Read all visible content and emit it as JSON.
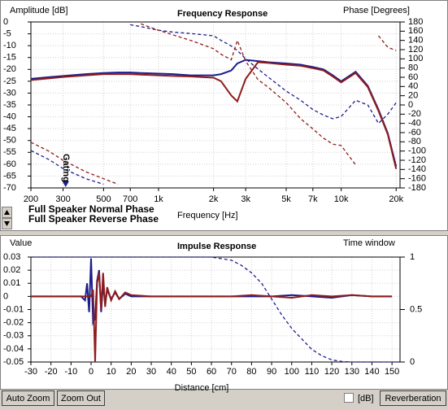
{
  "chart_data": [
    {
      "type": "line",
      "title": "Frequency Response",
      "xlabel": "Frequency [Hz]",
      "ylabel": "Amplitude [dB]",
      "y2label": "Phase [Degrees]",
      "xscale": "log",
      "grid": true,
      "x": [
        200,
        250,
        300,
        400,
        500,
        600,
        700,
        800,
        1000,
        1200,
        1500,
        2000,
        2200,
        2500,
        2700,
        3000,
        3500,
        4000,
        5000,
        6000,
        7000,
        8000,
        9000,
        10000,
        12000,
        14000,
        16000,
        18000,
        20000
      ],
      "xlim": [
        200,
        21000
      ],
      "xticks": [
        200,
        300,
        500,
        700,
        {
          "value": 1000,
          "label": "1k"
        },
        {
          "value": 2000,
          "label": "2k"
        },
        {
          "value": 3000,
          "label": "3k"
        },
        {
          "value": 5000,
          "label": "5k"
        },
        {
          "value": 7000,
          "label": "7k"
        },
        {
          "value": 10000,
          "label": "10k"
        },
        {
          "value": 20000,
          "label": "20k"
        }
      ],
      "ylim": [
        -70,
        0
      ],
      "yticks": [
        0,
        -5,
        -10,
        -15,
        -20,
        -25,
        -30,
        -35,
        -40,
        -45,
        -50,
        -55,
        -60,
        -65,
        -70
      ],
      "y2lim": [
        -180,
        180
      ],
      "y2ticks": [
        180,
        160,
        140,
        120,
        100,
        80,
        60,
        40,
        20,
        0,
        -20,
        -40,
        -60,
        -80,
        -100,
        -120,
        -140,
        -160,
        -180
      ],
      "annotations": [
        {
          "text": "Gating",
          "x": 310
        }
      ],
      "series": [
        {
          "name": "Full Speaker Normal Phase",
          "color": "#1c1c8e",
          "values": [
            -24,
            -23.3,
            -22.8,
            -22,
            -21.5,
            -21.3,
            -21.3,
            -21.5,
            -21.8,
            -22,
            -22.5,
            -22.5,
            -22,
            -20.5,
            -17.5,
            -16,
            -16.5,
            -17,
            -17.5,
            -18,
            -19,
            -20,
            -22.5,
            -25,
            -21,
            -27,
            -37,
            -47,
            -61
          ]
        },
        {
          "name": "Full Speaker Reverse Phase",
          "color": "#8e1c1c",
          "values": [
            -24.5,
            -23.8,
            -23.2,
            -22.5,
            -22,
            -22,
            -22,
            -22.2,
            -22.5,
            -22.8,
            -23,
            -23.5,
            -25,
            -31,
            -33.5,
            -24,
            -17,
            -17.3,
            -18,
            -18.5,
            -19.5,
            -20.5,
            -23,
            -25.5,
            -21.5,
            -27.5,
            -37.5,
            -47.5,
            -62
          ]
        },
        {
          "color": "#1c1c8e",
          "dash": true,
          "axis": "y2",
          "values": [
            -99,
            -118,
            -138,
            -160,
            -172,
            null,
            174,
            170,
            162,
            158,
            155,
            150,
            140,
            128,
            118,
            100,
            78,
            60,
            30,
            10,
            -10,
            -22,
            -30,
            -25,
            10,
            0,
            -40,
            -20,
            5
          ]
        },
        {
          "color": "#8e1c1c",
          "dash": true,
          "axis": "y2",
          "values": [
            -81,
            -100,
            -120,
            -145,
            -160,
            -172,
            null,
            176,
            162,
            152,
            140,
            122,
            110,
            98,
            140,
            95,
            55,
            38,
            5,
            -30,
            -52,
            -72,
            -85,
            -88,
            -130,
            null,
            150,
            125,
            118
          ]
        }
      ]
    },
    {
      "type": "line",
      "title": "Impulse Response",
      "xlabel": "Distance [cm]",
      "ylabel": "Value",
      "y2label": "Time window",
      "grid": true,
      "x": [
        -30,
        -5,
        -3,
        -2,
        -1,
        0,
        1,
        2,
        3,
        4,
        5,
        6,
        7,
        8,
        10,
        12,
        14,
        17,
        20,
        30,
        40,
        50,
        60,
        70,
        80,
        90,
        100,
        110,
        120,
        130,
        140,
        150
      ],
      "xlim": [
        -30,
        154
      ],
      "xticks": [
        -30,
        -20,
        -10,
        0,
        10,
        20,
        30,
        40,
        50,
        60,
        70,
        80,
        90,
        100,
        110,
        120,
        130,
        140,
        150
      ],
      "ylim": [
        -0.05,
        0.03
      ],
      "yticks": [
        0.03,
        0.02,
        0.01,
        0,
        -0.01,
        -0.02,
        -0.03,
        -0.04,
        -0.05
      ],
      "y2lim": [
        0,
        1
      ],
      "y2ticks": [
        1,
        0.5,
        0
      ],
      "series": [
        {
          "color": "#1c1c8e",
          "values": [
            0,
            0,
            -0.003,
            0.01,
            -0.012,
            0.029,
            -0.02,
            -0.017,
            0.012,
            0.02,
            -0.012,
            0.01,
            -0.006,
            0.005,
            -0.002,
            0.003,
            -0.002,
            0.002,
            0,
            0,
            0,
            0,
            0,
            0,
            0,
            0,
            0.001,
            0,
            -0.001,
            0.001,
            0,
            0
          ]
        },
        {
          "color": "#8e1c1c",
          "values": [
            0,
            0,
            0,
            0,
            0,
            0,
            0.005,
            -0.05,
            0.01,
            0.018,
            -0.01,
            0.018,
            -0.008,
            0.007,
            -0.003,
            0.004,
            -0.002,
            0.003,
            0.001,
            0,
            0,
            0,
            0,
            0,
            0.001,
            0,
            -0.001,
            0.001,
            0,
            0.001,
            0,
            0
          ]
        },
        {
          "color": "#1c1c8e",
          "dash": true,
          "axis": "y2",
          "x": [
            -30,
            60,
            70,
            75,
            80,
            85,
            90,
            95,
            100,
            105,
            110,
            115,
            120,
            125,
            130,
            154
          ],
          "values": [
            1,
            1,
            0.97,
            0.92,
            0.85,
            0.75,
            0.6,
            0.45,
            0.32,
            0.22,
            0.12,
            0.06,
            0.02,
            0.005,
            0,
            0
          ]
        }
      ]
    }
  ],
  "controls": {
    "buttons": [
      "Auto Zoom",
      "Zoom Out",
      "Reverberation"
    ],
    "checkbox_label": "[dB]"
  }
}
